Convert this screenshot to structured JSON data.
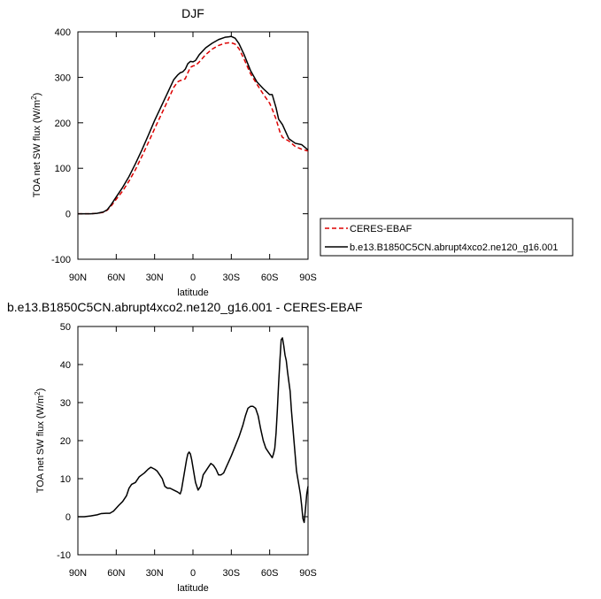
{
  "chart_data": [
    {
      "type": "line",
      "title": "DJF",
      "xlabel": "latitude",
      "ylabel": "TOA net SW flux (W/m",
      "ylabel_sup": "2",
      "ylabel_end": ")",
      "xlim": [
        -90,
        90
      ],
      "ylim": [
        -100,
        400
      ],
      "xticks": [
        -90,
        -60,
        -30,
        0,
        30,
        60,
        90
      ],
      "xtick_labels": [
        "90N",
        "60N",
        "30N",
        "0",
        "30S",
        "60S",
        "90S"
      ],
      "yticks": [
        -100,
        0,
        100,
        200,
        300,
        400
      ],
      "ytick_labels": [
        "-100",
        "0",
        "100",
        "200",
        "300",
        "400"
      ],
      "legend": {
        "position": "right",
        "entries": [
          "CERES-EBAF",
          "b.e13.B1850C5CN.abrupt4xco2.ne120_g16.001"
        ]
      },
      "series": [
        {
          "name": "CERES-EBAF",
          "color": "#dd0000",
          "dash": "dashed",
          "x": [
            -90,
            -80,
            -75,
            -70,
            -67,
            -64,
            -60,
            -55,
            -50,
            -45,
            -40,
            -35,
            -30,
            -25,
            -20,
            -15,
            -12,
            -10,
            -8,
            -6,
            -4,
            -2,
            0,
            2,
            5,
            10,
            15,
            20,
            25,
            28,
            30,
            33,
            36,
            40,
            45,
            50,
            55,
            60,
            62,
            65,
            68,
            70,
            75,
            80,
            85,
            90
          ],
          "y": [
            0,
            0,
            1,
            3,
            8,
            17,
            32,
            50,
            72,
            97,
            126,
            156,
            187,
            217,
            247,
            278,
            290,
            293,
            294,
            297,
            310,
            322,
            325,
            326,
            334,
            350,
            362,
            370,
            375,
            376,
            376,
            373,
            363,
            340,
            308,
            285,
            263,
            243,
            230,
            208,
            180,
            168,
            160,
            148,
            142,
            138
          ]
        },
        {
          "name": "b.e13.B1850C5CN.abrupt4xco2.ne120_g16.001",
          "color": "#000000",
          "dash": "solid",
          "x": [
            -90,
            -80,
            -75,
            -70,
            -67,
            -64,
            -60,
            -55,
            -50,
            -45,
            -40,
            -35,
            -30,
            -25,
            -20,
            -15,
            -12,
            -10,
            -8,
            -6,
            -4,
            -2,
            0,
            2,
            5,
            10,
            15,
            20,
            25,
            28,
            30,
            33,
            36,
            40,
            45,
            50,
            55,
            60,
            62,
            65,
            67,
            70,
            75,
            80,
            85,
            88,
            90
          ],
          "y": [
            0,
            0,
            1,
            4,
            9,
            20,
            37,
            58,
            82,
            110,
            140,
            172,
            205,
            235,
            265,
            295,
            305,
            310,
            312,
            318,
            330,
            335,
            334,
            337,
            350,
            365,
            375,
            383,
            388,
            389,
            390,
            386,
            374,
            350,
            315,
            290,
            275,
            262,
            262,
            233,
            208,
            196,
            165,
            155,
            152,
            145,
            140
          ]
        }
      ]
    },
    {
      "type": "line",
      "title": "b.e13.B1850C5CN.abrupt4xco2.ne120_g16.001 - CERES-EBAF",
      "xlabel": "latitude",
      "ylabel": "TOA net SW flux (W/m",
      "ylabel_sup": "2",
      "ylabel_end": ")",
      "xlim": [
        -90,
        90
      ],
      "ylim": [
        -10,
        50
      ],
      "xticks": [
        -90,
        -60,
        -30,
        0,
        30,
        60,
        90
      ],
      "xtick_labels": [
        "90N",
        "60N",
        "30N",
        "0",
        "30S",
        "60S",
        "90S"
      ],
      "yticks": [
        -10,
        0,
        10,
        20,
        30,
        40,
        50
      ],
      "ytick_labels": [
        "-10",
        "0",
        "10",
        "20",
        "30",
        "40",
        "50"
      ],
      "series": [
        {
          "name": "b.e13.B1850C5CN.abrupt4xco2.ne120_g16.001 - CERES-EBAF",
          "color": "#000000",
          "dash": "solid",
          "x": [
            -90,
            -85,
            -80,
            -75,
            -72,
            -68,
            -65,
            -62,
            -58,
            -55,
            -52,
            -50,
            -48,
            -45,
            -42,
            -40,
            -38,
            -35,
            -33,
            -30,
            -28,
            -26,
            -24,
            -22,
            -20,
            -18,
            -15,
            -12,
            -10,
            -9,
            -8,
            -7,
            -6,
            -5,
            -4,
            -3,
            -2,
            -1,
            0,
            1,
            2,
            4,
            6,
            8,
            10,
            12,
            14,
            16,
            18,
            20,
            22,
            24,
            26,
            28,
            30,
            33,
            36,
            39,
            41,
            43,
            45,
            47,
            49,
            51,
            53,
            55,
            57,
            59,
            61,
            62,
            63,
            64,
            65,
            66,
            67,
            68,
            69,
            70,
            71,
            72,
            73,
            74,
            75,
            76,
            77,
            78,
            79,
            80,
            81,
            82,
            83,
            84,
            85,
            86,
            87,
            88,
            89,
            90
          ],
          "y": [
            0,
            0,
            0.2,
            0.5,
            0.8,
            0.9,
            0.9,
            1.5,
            3,
            4,
            5.5,
            7.5,
            8.5,
            9,
            10.5,
            11,
            11.5,
            12.5,
            13,
            12.5,
            12,
            11,
            10,
            8,
            7.5,
            7.5,
            7,
            6.5,
            6,
            7,
            9,
            11,
            13,
            15,
            16.5,
            17,
            16.5,
            15,
            13,
            11,
            9,
            7,
            8,
            11,
            12,
            13,
            14,
            13.5,
            12.5,
            11,
            11,
            11.5,
            13,
            14.5,
            16,
            18.5,
            21,
            24,
            26.5,
            28.5,
            29,
            29,
            28.5,
            26.5,
            23,
            20,
            18,
            17,
            16,
            15.5,
            16.5,
            18,
            22,
            28,
            35,
            41,
            46.5,
            47,
            45,
            42.5,
            41,
            38,
            35.5,
            33,
            28,
            24,
            20,
            16,
            12,
            10,
            8,
            6,
            3,
            -0.5,
            -1.5,
            2,
            6,
            8
          ]
        }
      ]
    }
  ]
}
